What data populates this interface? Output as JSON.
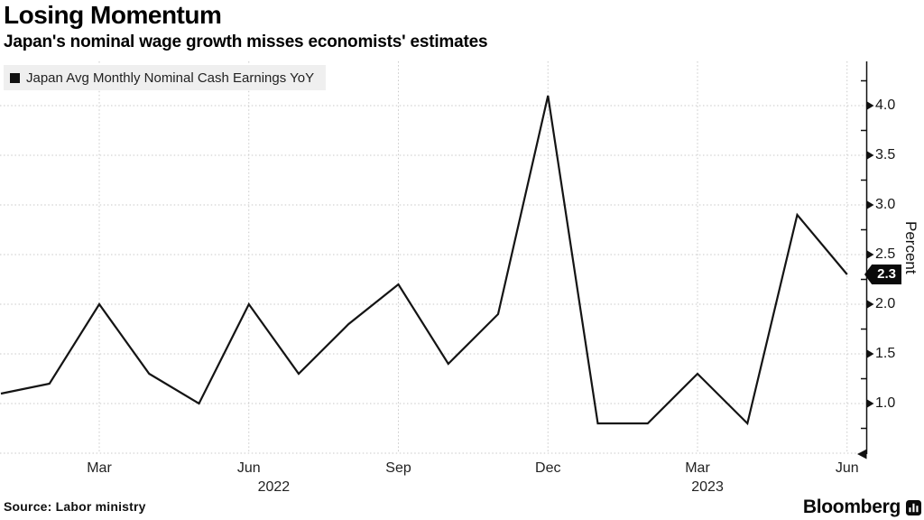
{
  "header": {
    "title": "Losing Momentum",
    "subtitle": "Japan's nominal wage growth misses economists' estimates"
  },
  "legend": {
    "label": "Japan Avg Monthly Nominal Cash Earnings YoY",
    "marker_color": "#111111"
  },
  "footer": {
    "source": "Source: Labor ministry",
    "brand": "Bloomberg"
  },
  "chart_data": {
    "type": "line",
    "title": "Losing Momentum",
    "subtitle": "Japan's nominal wage growth misses economists' estimates",
    "grid": "dotted",
    "legend_position": "top-left",
    "xlabel": "",
    "ylabel": "Percent",
    "ylim": [
      0.5,
      4.45
    ],
    "series": [
      {
        "name": "Japan Avg Monthly Nominal Cash Earnings YoY",
        "color": "#141414",
        "x": [
          "Jan 2022",
          "Feb 2022",
          "Mar 2022",
          "Apr 2022",
          "May 2022",
          "Jun 2022",
          "Jul 2022",
          "Aug 2022",
          "Sep 2022",
          "Oct 2022",
          "Nov 2022",
          "Dec 2022",
          "Jan 2023",
          "Feb 2023",
          "Mar 2023",
          "Apr 2023",
          "May 2023",
          "Jun 2023"
        ],
        "values": [
          1.1,
          1.2,
          2.0,
          1.3,
          1.0,
          2.0,
          1.3,
          1.8,
          2.2,
          1.4,
          1.9,
          4.1,
          0.8,
          0.8,
          1.3,
          0.8,
          2.9,
          2.3
        ]
      }
    ],
    "x_ticks": [
      {
        "label": "Mar",
        "month_index": 2
      },
      {
        "label": "Jun",
        "month_index": 5
      },
      {
        "label": "Sep",
        "month_index": 8
      },
      {
        "label": "Dec",
        "month_index": 11
      },
      {
        "label": "Mar",
        "month_index": 14
      },
      {
        "label": "Jun",
        "month_index": 17
      }
    ],
    "x_year_labels": [
      {
        "label": "2022",
        "month_index": 5.5
      },
      {
        "label": "2023",
        "month_index": 14.2
      }
    ],
    "y_ticks": [
      1.0,
      1.5,
      2.0,
      2.5,
      3.0,
      3.5,
      4.0
    ],
    "y_minor_ticks": [
      0.75,
      1.25,
      1.75,
      2.25,
      2.75,
      3.25,
      3.75,
      4.25
    ],
    "y_gridlines": [
      0.5,
      1.0,
      1.5,
      2.0,
      2.5,
      3.0,
      3.5,
      4.0
    ],
    "last_point_tag": {
      "label": "2.3",
      "value": 2.3
    }
  }
}
